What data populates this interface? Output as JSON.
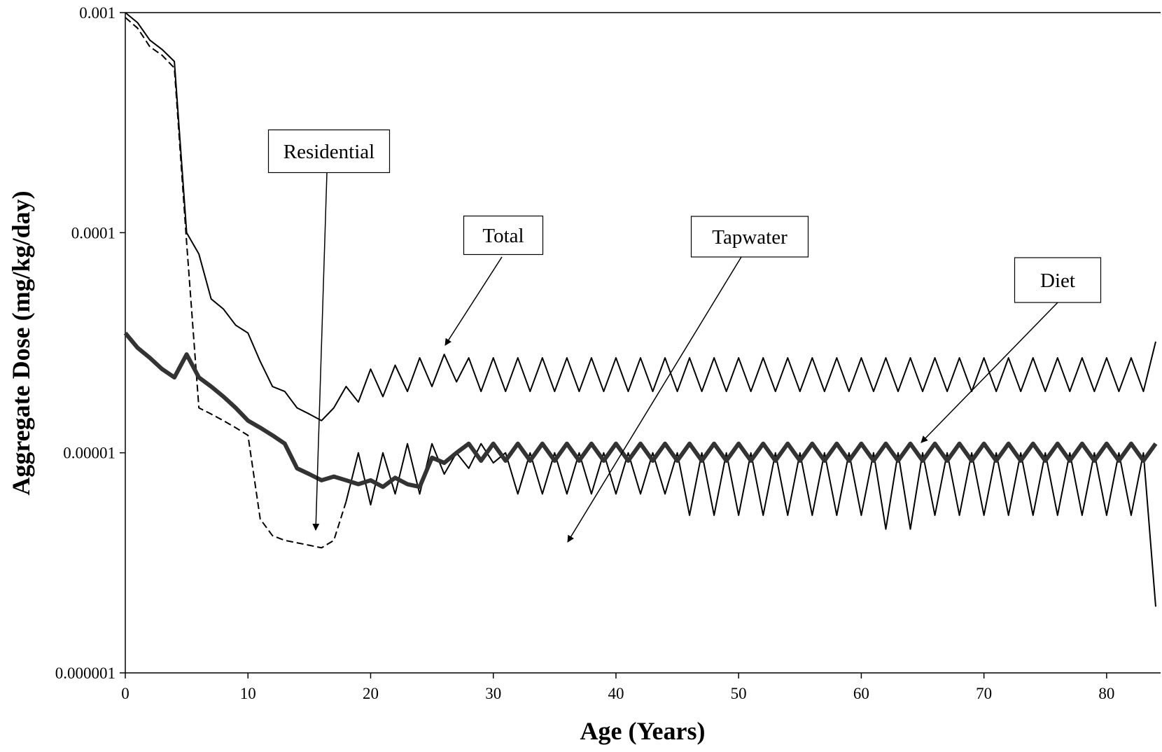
{
  "chart_data": {
    "type": "line",
    "xlabel": "Age (Years)",
    "ylabel": "Aggregate Dose (mg/kg/day)",
    "log_y": true,
    "xlim": [
      0,
      84.4
    ],
    "ylim": [
      1e-06,
      0.001
    ],
    "xticks": [
      0,
      10,
      20,
      30,
      40,
      50,
      60,
      70,
      80
    ],
    "yticks": [
      1e-06,
      1e-05,
      0.0001,
      0.001
    ],
    "x": [
      0,
      1,
      2,
      3,
      4,
      5,
      6,
      7,
      8,
      9,
      10,
      11,
      12,
      13,
      14,
      15,
      16,
      17,
      18,
      19,
      20,
      21,
      22,
      23,
      24,
      25,
      26,
      27,
      28,
      29,
      30,
      31,
      32,
      33,
      34,
      35,
      36,
      37,
      38,
      39,
      40,
      41,
      42,
      43,
      44,
      45,
      46,
      47,
      48,
      49,
      50,
      51,
      52,
      53,
      54,
      55,
      56,
      57,
      58,
      59,
      60,
      61,
      62,
      63,
      64,
      65,
      66,
      67,
      68,
      69,
      70,
      71,
      72,
      73,
      74,
      75,
      76,
      77,
      78,
      79,
      80,
      81,
      82,
      83,
      84
    ],
    "series": [
      {
        "name": "Total",
        "color": "#000000",
        "width": 2,
        "dash": false,
        "values": [
          0.001,
          0.0009,
          0.00075,
          0.00068,
          0.0006,
          0.0001,
          8e-05,
          5e-05,
          4.5e-05,
          3.8e-05,
          3.5e-05,
          2.6e-05,
          2e-05,
          1.9e-05,
          1.6e-05,
          1.5e-05,
          1.4e-05,
          1.6e-05,
          2e-05,
          1.7e-05,
          2.4e-05,
          1.8e-05,
          2.5e-05,
          1.9e-05,
          2.7e-05,
          2e-05,
          2.8e-05,
          2.1e-05,
          2.7e-05,
          1.9e-05,
          2.7e-05,
          1.9e-05,
          2.7e-05,
          1.9e-05,
          2.7e-05,
          1.9e-05,
          2.7e-05,
          1.9e-05,
          2.7e-05,
          1.9e-05,
          2.7e-05,
          1.9e-05,
          2.7e-05,
          1.9e-05,
          2.7e-05,
          1.9e-05,
          2.7e-05,
          1.9e-05,
          2.7e-05,
          1.9e-05,
          2.7e-05,
          1.9e-05,
          2.7e-05,
          1.9e-05,
          2.7e-05,
          1.9e-05,
          2.7e-05,
          1.9e-05,
          2.7e-05,
          1.9e-05,
          2.7e-05,
          1.9e-05,
          2.7e-05,
          1.9e-05,
          2.7e-05,
          1.9e-05,
          2.7e-05,
          1.9e-05,
          2.7e-05,
          1.9e-05,
          2.7e-05,
          1.9e-05,
          2.7e-05,
          1.9e-05,
          2.7e-05,
          1.9e-05,
          2.7e-05,
          1.9e-05,
          2.7e-05,
          1.9e-05,
          2.7e-05,
          1.9e-05,
          2.7e-05,
          1.9e-05,
          3.2e-05
        ]
      },
      {
        "name": "Residential",
        "color": "#000000",
        "width": 2,
        "dash": true,
        "values": [
          0.00095,
          0.00085,
          0.0007,
          0.00064,
          0.00056,
          9e-05,
          1.6e-05,
          1.5e-05,
          1.4e-05,
          1.3e-05,
          1.2e-05,
          5e-06,
          4.2e-06,
          4e-06,
          3.9e-06,
          3.8e-06,
          3.7e-06,
          4e-06,
          6e-06,
          null,
          null,
          null,
          null,
          null,
          null,
          null,
          null,
          null,
          null,
          null,
          null,
          null,
          null,
          null,
          null,
          null,
          null,
          null,
          null,
          null,
          null,
          null,
          null,
          null,
          null,
          null,
          null,
          null,
          null,
          null,
          null,
          null,
          null,
          null,
          null,
          null,
          null,
          null,
          null,
          null,
          null,
          null,
          null,
          null,
          null,
          null,
          null,
          null,
          null,
          null,
          null,
          null,
          null,
          null,
          null,
          null,
          null,
          null,
          null,
          null,
          null,
          null,
          null,
          null,
          null
        ]
      },
      {
        "name": "Tapwater",
        "color": "#000000",
        "width": 2,
        "dash": false,
        "values": [
          null,
          null,
          null,
          null,
          null,
          null,
          null,
          null,
          null,
          null,
          null,
          null,
          null,
          null,
          null,
          null,
          null,
          null,
          6e-06,
          1e-05,
          5.8e-06,
          1e-05,
          6.5e-06,
          1.1e-05,
          6.5e-06,
          1.1e-05,
          8e-06,
          1e-05,
          8.5e-06,
          1.1e-05,
          9e-06,
          1e-05,
          6.5e-06,
          1e-05,
          6.5e-06,
          1e-05,
          6.5e-06,
          1e-05,
          6.5e-06,
          1e-05,
          6.5e-06,
          1e-05,
          6.5e-06,
          1e-05,
          6.5e-06,
          1e-05,
          5.2e-06,
          1e-05,
          5.2e-06,
          1e-05,
          5.2e-06,
          1e-05,
          5.2e-06,
          1e-05,
          5.2e-06,
          1e-05,
          5.2e-06,
          1e-05,
          5.2e-06,
          1e-05,
          5.2e-06,
          1e-05,
          4.5e-06,
          1e-05,
          4.5e-06,
          1e-05,
          5.2e-06,
          1e-05,
          5.2e-06,
          1e-05,
          5.2e-06,
          1e-05,
          5.2e-06,
          1e-05,
          5.2e-06,
          1e-05,
          5.2e-06,
          1e-05,
          5.2e-06,
          1e-05,
          5.2e-06,
          1e-05,
          5.2e-06,
          1e-05,
          2e-06
        ]
      },
      {
        "name": "Diet",
        "color": "#333333",
        "width": 6,
        "dash": false,
        "values": [
          3.5e-05,
          3e-05,
          2.7e-05,
          2.4e-05,
          2.2e-05,
          2.8e-05,
          2.2e-05,
          2e-05,
          1.8e-05,
          1.6e-05,
          1.4e-05,
          1.3e-05,
          1.2e-05,
          1.1e-05,
          8.5e-06,
          8e-06,
          7.5e-06,
          7.8e-06,
          7.5e-06,
          7.2e-06,
          7.5e-06,
          7e-06,
          7.7e-06,
          7.2e-06,
          7e-06,
          9.5e-06,
          9e-06,
          1e-05,
          1.1e-05,
          9.2e-06,
          1.1e-05,
          9.2e-06,
          1.1e-05,
          9.2e-06,
          1.1e-05,
          9.2e-06,
          1.1e-05,
          9.2e-06,
          1.1e-05,
          9.2e-06,
          1.1e-05,
          9.2e-06,
          1.1e-05,
          9.2e-06,
          1.1e-05,
          9.2e-06,
          1.1e-05,
          9.2e-06,
          1.1e-05,
          9.2e-06,
          1.1e-05,
          9.2e-06,
          1.1e-05,
          9.2e-06,
          1.1e-05,
          9.2e-06,
          1.1e-05,
          9.2e-06,
          1.1e-05,
          9.2e-06,
          1.1e-05,
          9.2e-06,
          1.1e-05,
          9.2e-06,
          1.1e-05,
          9.2e-06,
          1.1e-05,
          9.2e-06,
          1.1e-05,
          9.2e-06,
          1.1e-05,
          9.2e-06,
          1.1e-05,
          9.2e-06,
          1.1e-05,
          9.2e-06,
          1.1e-05,
          9.2e-06,
          1.1e-05,
          9.2e-06,
          1.1e-05,
          9.2e-06,
          1.1e-05,
          9.2e-06,
          1.1e-05
        ]
      }
    ],
    "annotations": [
      "Residential",
      "Total",
      "Tapwater",
      "Diet"
    ]
  }
}
